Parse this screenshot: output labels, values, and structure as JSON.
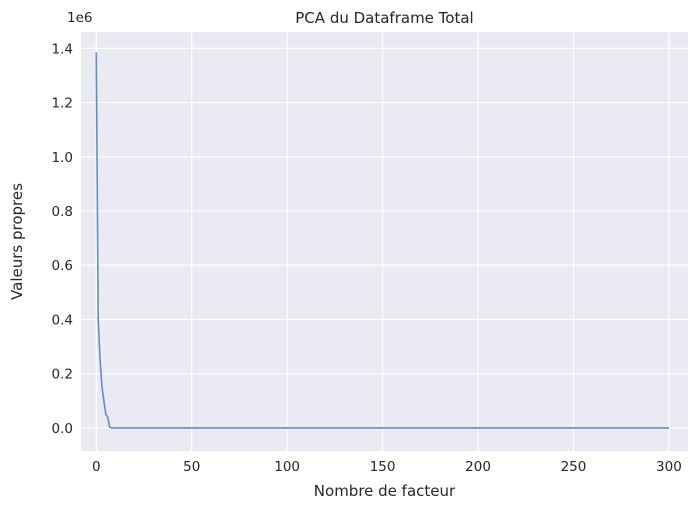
{
  "chart_data": {
    "type": "line",
    "title": "PCA du Dataframe Total",
    "xlabel": "Nombre de facteur",
    "ylabel": "Valeurs propres",
    "y_offset_label": "1e6",
    "xlim": [
      -8,
      310
    ],
    "ylim": [
      -0.085,
      1.46
    ],
    "x_ticks": [
      0,
      50,
      100,
      150,
      200,
      250,
      300
    ],
    "x_tick_labels": [
      "0",
      "50",
      "100",
      "150",
      "200",
      "250",
      "300"
    ],
    "y_ticks": [
      0.0,
      0.2,
      0.4,
      0.6,
      0.8,
      1.0,
      1.2,
      1.4
    ],
    "y_tick_labels": [
      "0.0",
      "0.2",
      "0.4",
      "0.6",
      "0.8",
      "1.0",
      "1.2",
      "1.4"
    ],
    "grid": true,
    "background": "#eaeaf2",
    "grid_color": "#ffffff",
    "line_color": "#6b8bc0",
    "series": [
      {
        "x": [
          0,
          1,
          2,
          3,
          4,
          5,
          6,
          7,
          8,
          300
        ],
        "values": [
          1.385,
          0.4,
          0.25,
          0.15,
          0.1,
          0.05,
          0.04,
          0.003,
          0.0,
          0.0
        ]
      }
    ]
  }
}
